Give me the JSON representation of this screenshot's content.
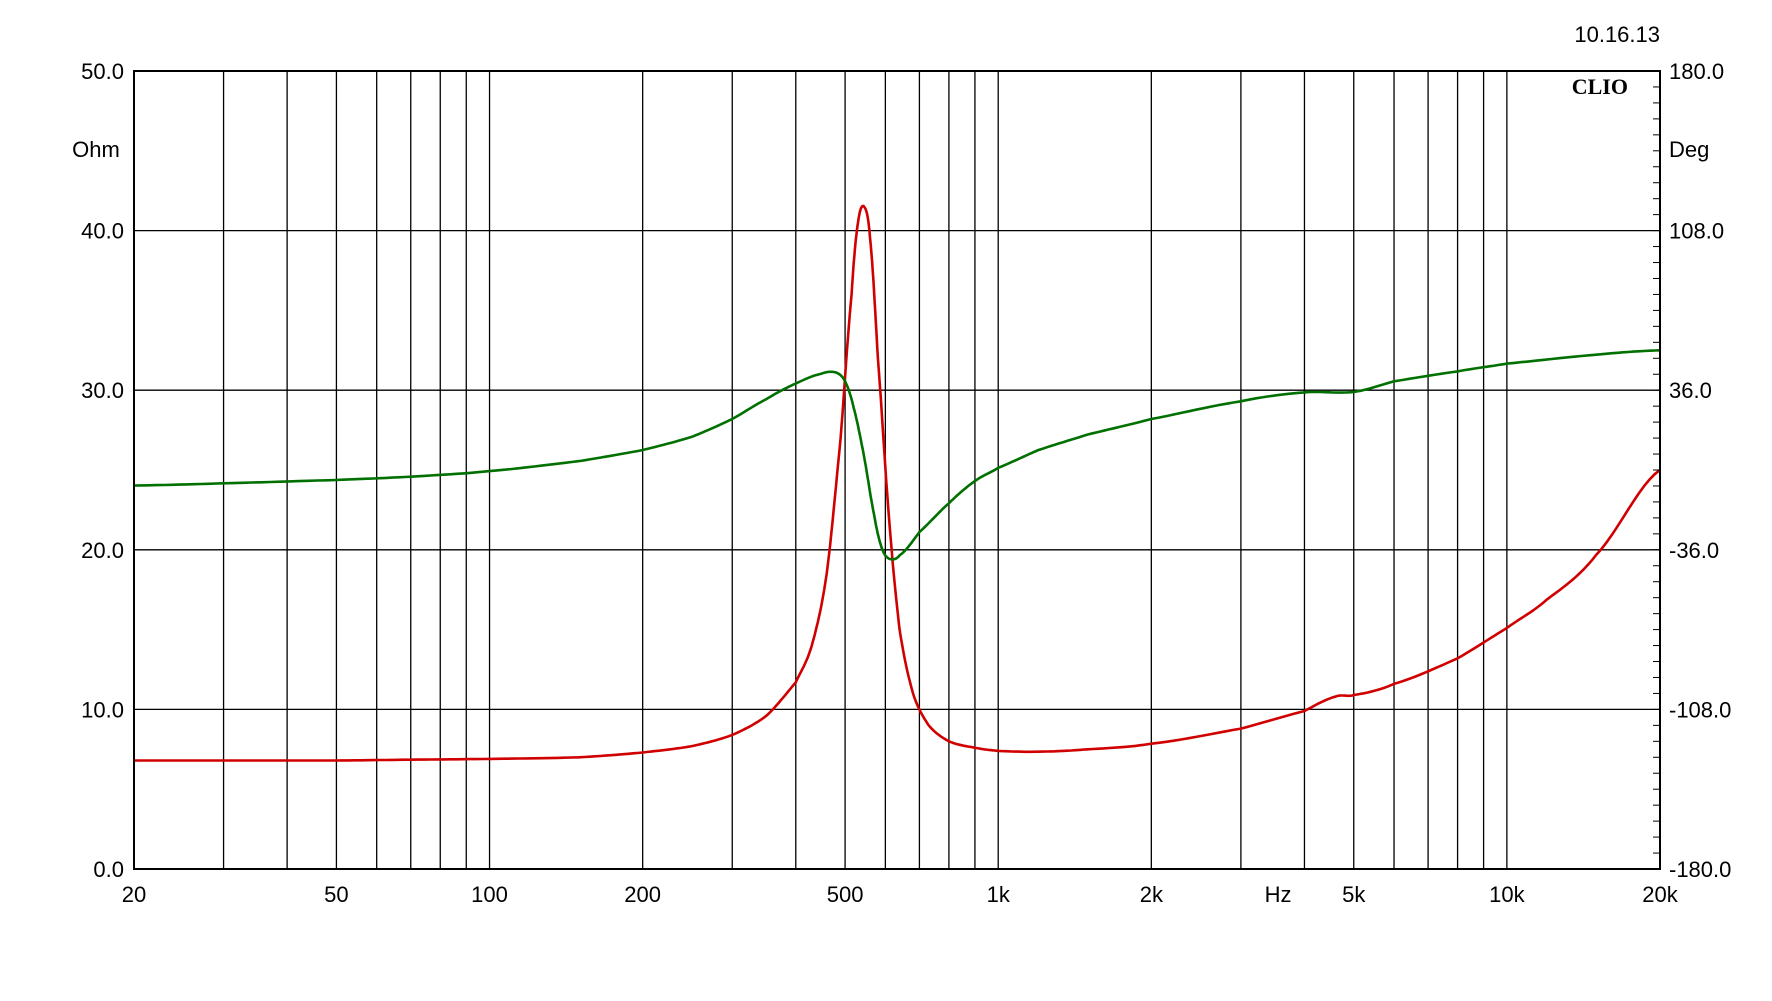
{
  "chart_data": {
    "type": "line",
    "date_stamp": "10.16.13",
    "brand": "CLIO",
    "x_axis": {
      "unit_label": "Hz",
      "scale": "log",
      "range": [
        20,
        20000
      ],
      "tick_values": [
        20,
        50,
        100,
        200,
        500,
        1000,
        2000,
        5000,
        10000,
        20000
      ],
      "tick_labels": [
        "20",
        "50",
        "100",
        "200",
        "500",
        "1k",
        "2k",
        "5k",
        "10k",
        "20k"
      ]
    },
    "y_left": {
      "unit_label": "Ohm",
      "range": [
        0,
        50
      ],
      "tick_values": [
        0,
        10,
        20,
        30,
        40,
        50
      ],
      "tick_labels": [
        "0.0",
        "10.0",
        "20.0",
        "30.0",
        "40.0",
        "50.0"
      ]
    },
    "y_right": {
      "unit_label": "Deg",
      "range": [
        -180,
        180
      ],
      "tick_values": [
        -180,
        -108,
        -36,
        36,
        108,
        180
      ],
      "tick_labels": [
        "-180.0",
        "-108.0",
        "-36.0",
        "36.0",
        "108.0",
        "180.0"
      ]
    },
    "grid": true,
    "series": [
      {
        "axis": "left",
        "color": "#d00000",
        "points": [
          [
            20,
            6.8
          ],
          [
            50,
            6.8
          ],
          [
            70,
            6.85
          ],
          [
            100,
            6.9
          ],
          [
            150,
            7.0
          ],
          [
            200,
            7.3
          ],
          [
            250,
            7.7
          ],
          [
            300,
            8.4
          ],
          [
            350,
            9.6
          ],
          [
            400,
            11.7
          ],
          [
            430,
            14.0
          ],
          [
            460,
            18.5
          ],
          [
            490,
            27.0
          ],
          [
            515,
            36.0
          ],
          [
            530,
            40.5
          ],
          [
            545,
            41.5
          ],
          [
            560,
            39.5
          ],
          [
            580,
            32.0
          ],
          [
            610,
            22.0
          ],
          [
            640,
            15.0
          ],
          [
            680,
            11.0
          ],
          [
            730,
            9.0
          ],
          [
            800,
            8.0
          ],
          [
            900,
            7.6
          ],
          [
            1000,
            7.4
          ],
          [
            1200,
            7.35
          ],
          [
            1500,
            7.5
          ],
          [
            2000,
            7.85
          ],
          [
            3000,
            8.8
          ],
          [
            4000,
            9.9
          ],
          [
            4600,
            10.8
          ],
          [
            5000,
            10.9
          ],
          [
            6000,
            11.6
          ],
          [
            8000,
            13.2
          ],
          [
            10000,
            15.1
          ],
          [
            12000,
            16.9
          ],
          [
            15000,
            19.7
          ],
          [
            20000,
            25.0
          ]
        ]
      },
      {
        "axis": "right",
        "color": "#007000",
        "points": [
          [
            20,
            -7.0
          ],
          [
            30,
            -6.0
          ],
          [
            50,
            -4.5
          ],
          [
            70,
            -3.0
          ],
          [
            100,
            -0.5
          ],
          [
            150,
            4.0
          ],
          [
            200,
            9.0
          ],
          [
            250,
            15.0
          ],
          [
            300,
            23.0
          ],
          [
            350,
            32.0
          ],
          [
            400,
            39.0
          ],
          [
            450,
            43.5
          ],
          [
            480,
            44.0
          ],
          [
            500,
            40.0
          ],
          [
            520,
            28.0
          ],
          [
            545,
            6.0
          ],
          [
            570,
            -20.0
          ],
          [
            590,
            -35.0
          ],
          [
            610,
            -40.0
          ],
          [
            640,
            -38.5
          ],
          [
            700,
            -28.0
          ],
          [
            800,
            -15.0
          ],
          [
            900,
            -5.0
          ],
          [
            1000,
            1.0
          ],
          [
            1200,
            9.0
          ],
          [
            1500,
            16.0
          ],
          [
            2000,
            23.0
          ],
          [
            3000,
            31.0
          ],
          [
            4000,
            35.0
          ],
          [
            5000,
            35.2
          ],
          [
            6000,
            40.0
          ],
          [
            8000,
            44.5
          ],
          [
            10000,
            48.0
          ],
          [
            15000,
            52.0
          ],
          [
            20000,
            54.0
          ]
        ]
      }
    ]
  }
}
